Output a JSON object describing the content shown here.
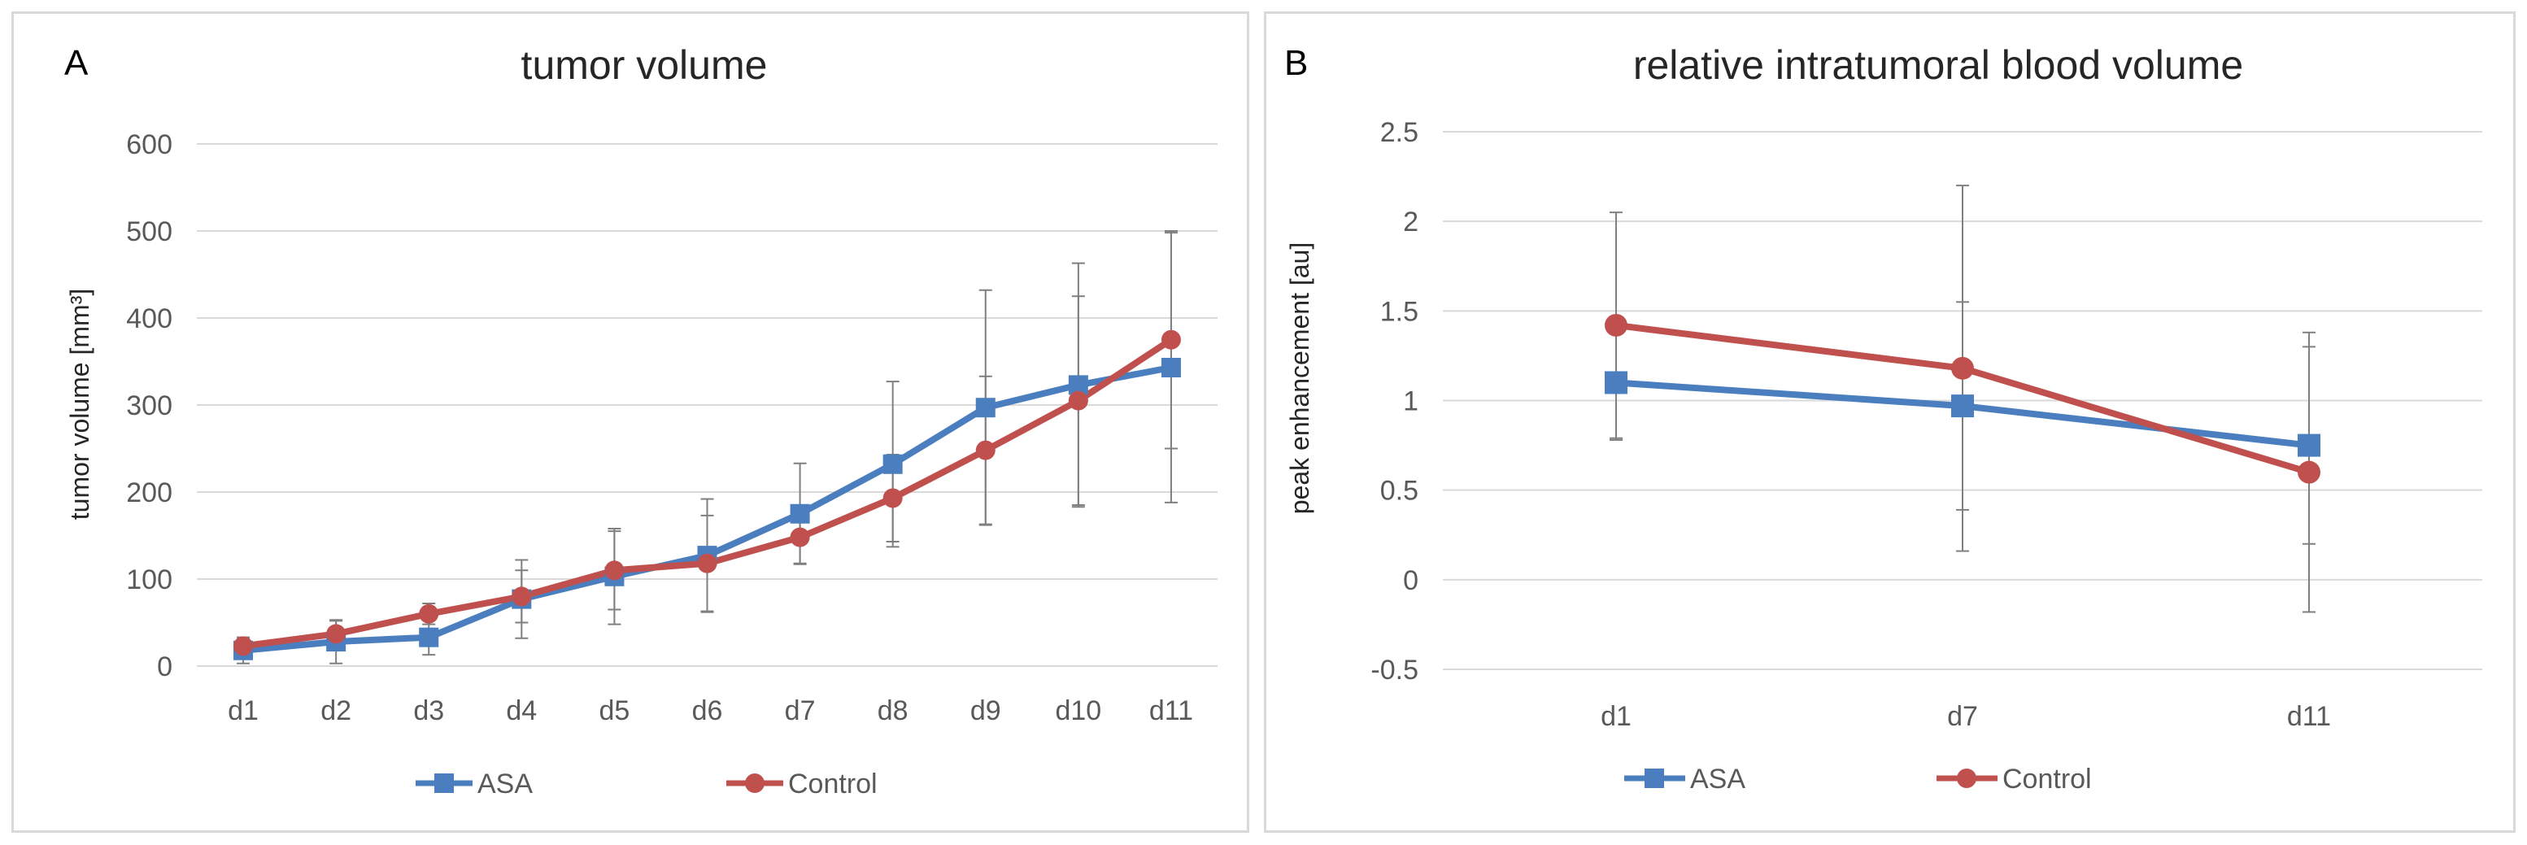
{
  "chart_data": [
    {
      "type": "line",
      "panel_letter": "A",
      "title": "tumor volume",
      "xlabel": "",
      "ylabel": "tumor volume [mm³]",
      "ylim": [
        0,
        600
      ],
      "yticks": [
        0,
        100,
        200,
        300,
        400,
        500,
        600
      ],
      "ytick_labels": [
        "0",
        "100",
        "200",
        "300",
        "400",
        "500",
        "600"
      ],
      "grid": "horizontal",
      "legend_position": "bottom",
      "categories": [
        "d1",
        "d2",
        "d3",
        "d4",
        "d5",
        "d6",
        "d7",
        "d8",
        "d9",
        "d10",
        "d11"
      ],
      "series": [
        {
          "name": "ASA",
          "color": "#4a7ebf",
          "marker": "square",
          "values": [
            18,
            28,
            33,
            77,
            103,
            127,
            175,
            232,
            297,
            323,
            343
          ],
          "errors": [
            15,
            25,
            20,
            45,
            55,
            65,
            58,
            95,
            135,
            140,
            155
          ]
        },
        {
          "name": "Control",
          "color": "#c0504d",
          "marker": "circle",
          "values": [
            23,
            37,
            60,
            80,
            110,
            118,
            148,
            193,
            248,
            305,
            375
          ],
          "errors": [
            10,
            15,
            12,
            30,
            45,
            55,
            30,
            50,
            85,
            120,
            125
          ]
        }
      ]
    },
    {
      "type": "line",
      "panel_letter": "B",
      "title": "relative intratumoral blood volume",
      "xlabel": "",
      "ylabel": "peak enhancement [au]",
      "ylim": [
        -0.5,
        2.5
      ],
      "yticks": [
        -0.5,
        0,
        0.5,
        1,
        1.5,
        2,
        2.5
      ],
      "ytick_labels": [
        "-0.5",
        "0",
        "0.5",
        "1",
        "1.5",
        "2",
        "2.5"
      ],
      "grid": "horizontal",
      "legend_position": "bottom",
      "categories": [
        "d1",
        "d7",
        "d11"
      ],
      "series": [
        {
          "name": "ASA",
          "color": "#4a7ebf",
          "marker": "square",
          "values": [
            1.1,
            0.97,
            0.75
          ],
          "errors": [
            0.32,
            0.58,
            0.55
          ]
        },
        {
          "name": "Control",
          "color": "#c0504d",
          "marker": "circle",
          "values": [
            1.42,
            1.18,
            0.6
          ],
          "errors": [
            0.63,
            1.02,
            0.78
          ]
        }
      ]
    }
  ]
}
